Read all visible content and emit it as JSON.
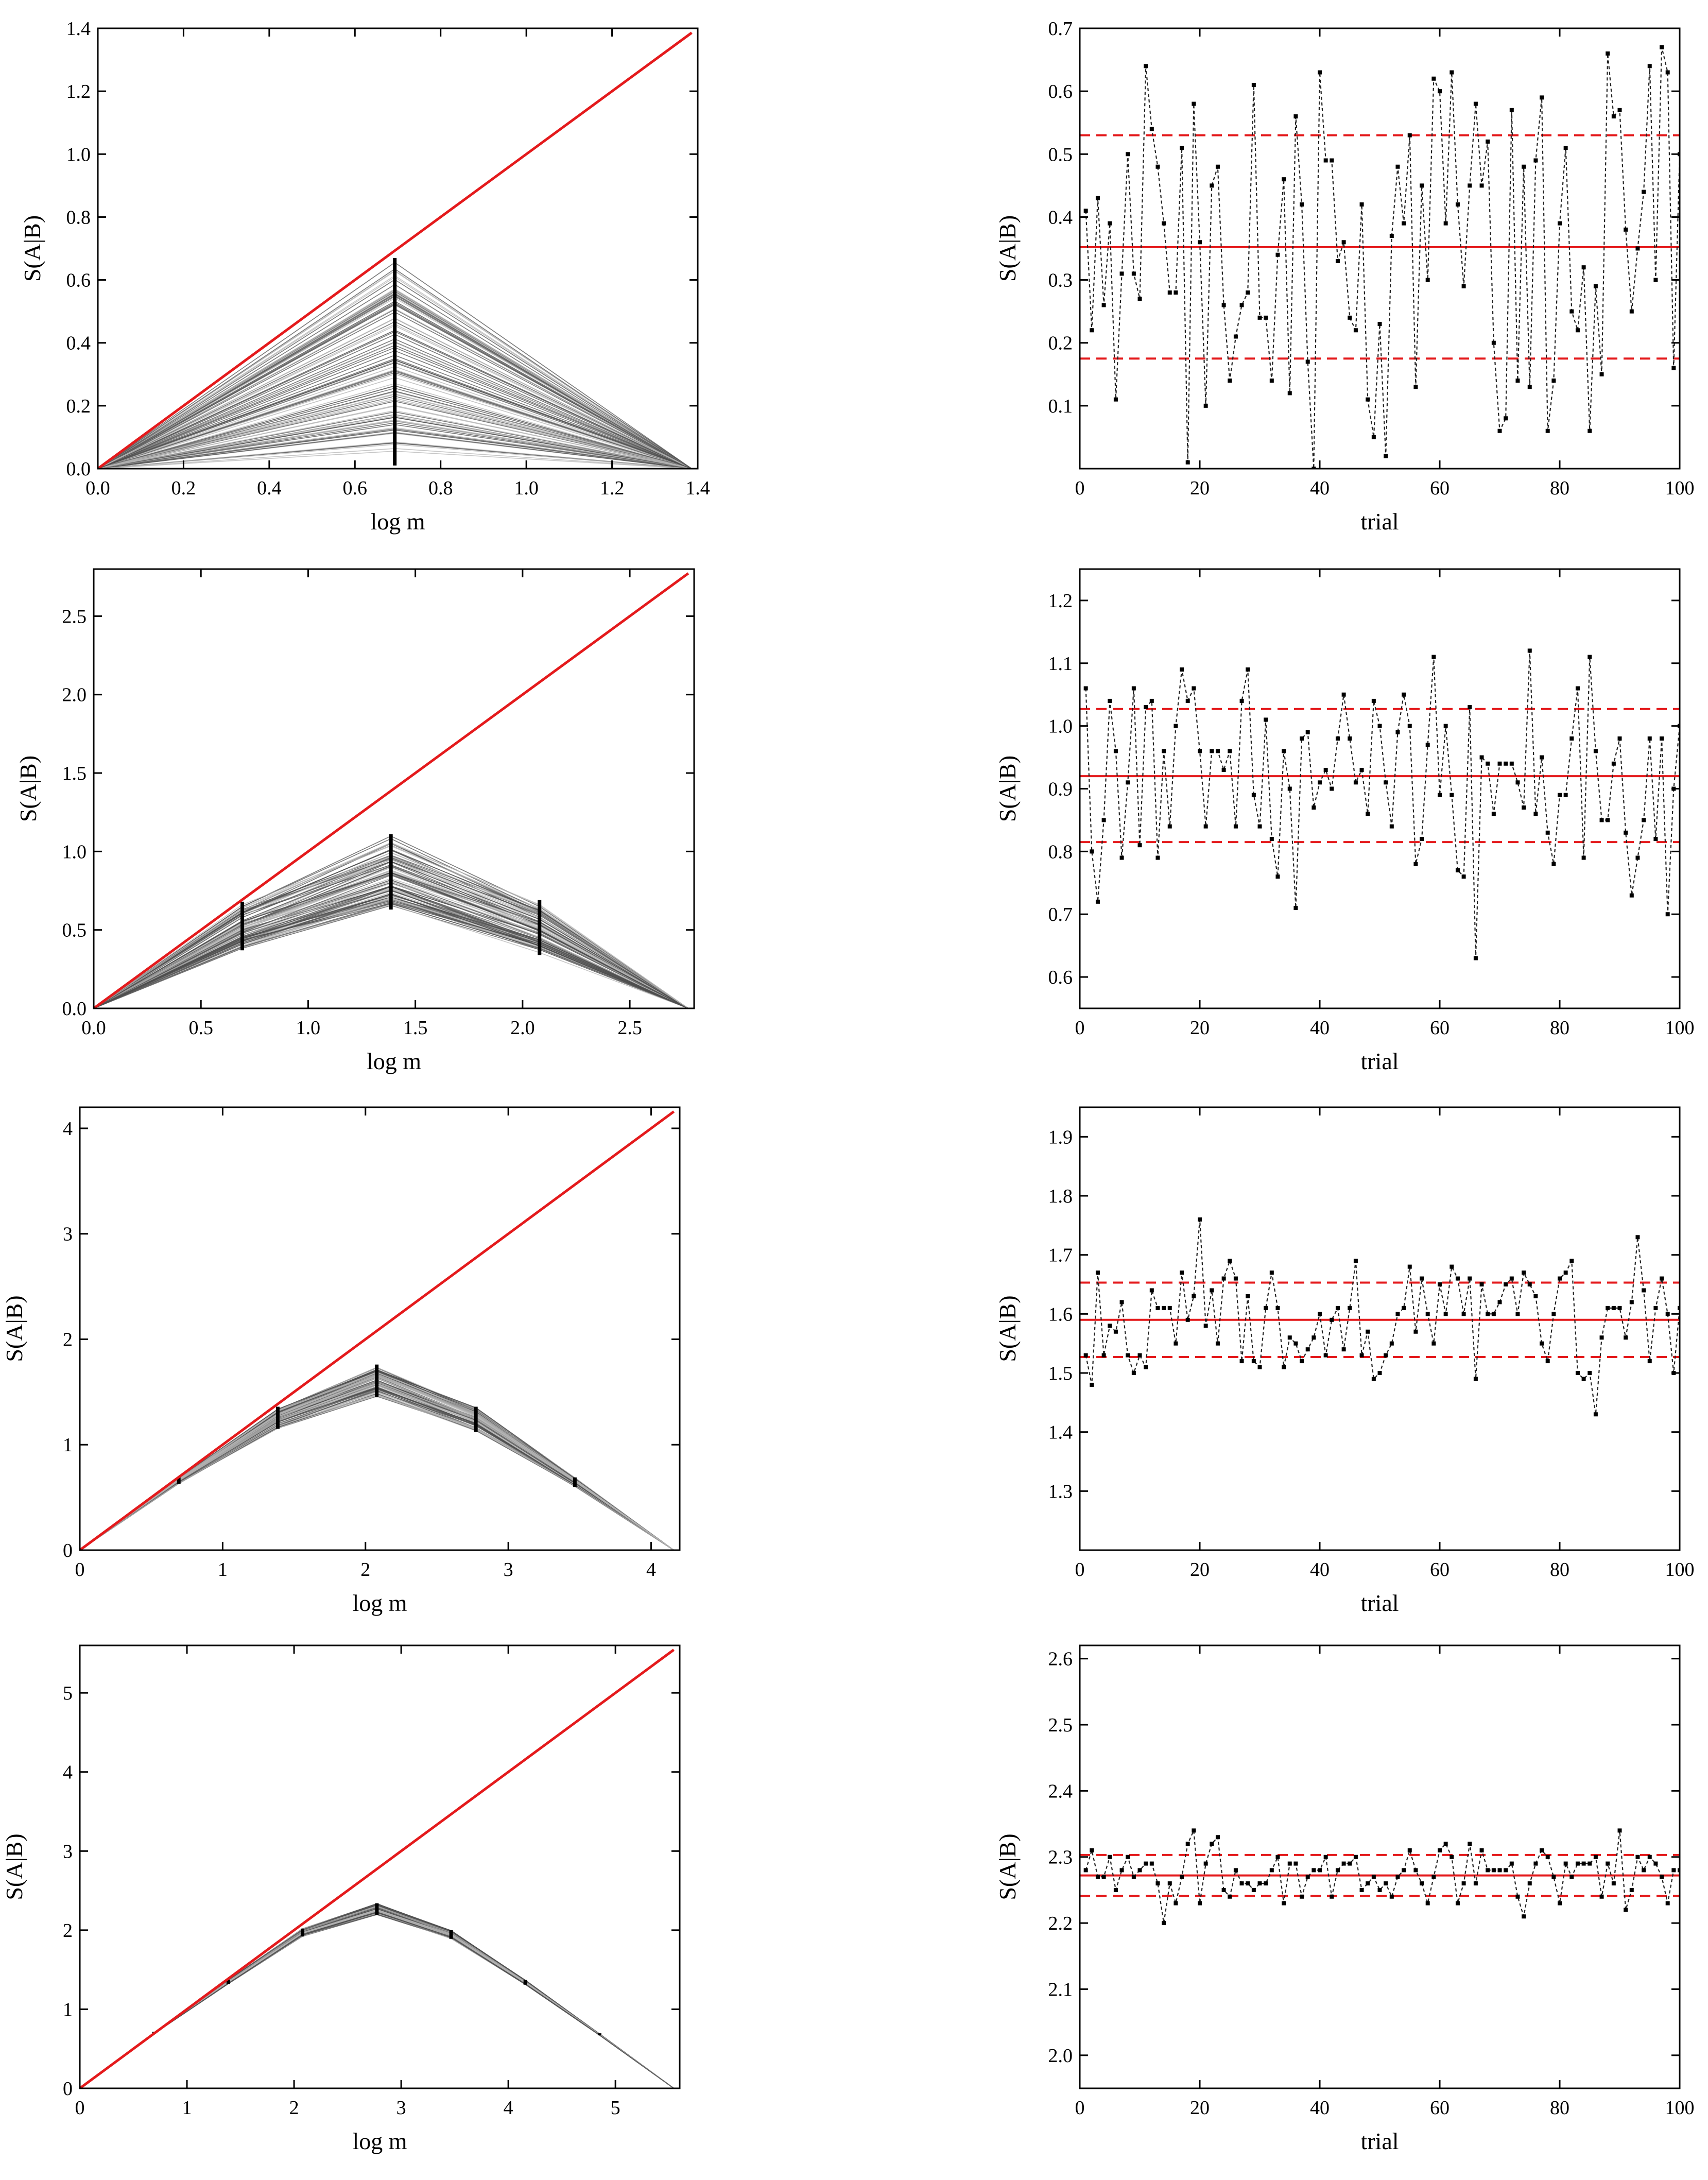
{
  "colors": {
    "reference_line": "#e41a1c",
    "mean_line": "#e41a1c",
    "band_line": "#e41a1c",
    "trial_series": "#222222",
    "profile_light": "#b3b3b3",
    "profile_dark": "#4d4d4d",
    "marker": "#000000"
  },
  "chart_data": [
    {
      "type": "line",
      "panel": "row-1-left",
      "xlabel": "log m",
      "ylabel": "S(A|B)",
      "xlim": [
        0,
        1.4
      ],
      "ylim": [
        0,
        1.4
      ],
      "xticks": [
        "0.0",
        "0.2",
        "0.4",
        "0.6",
        "0.8",
        "1.0",
        "1.2",
        "1.4"
      ],
      "yticks": [
        "0.0",
        "0.2",
        "0.4",
        "0.6",
        "0.8",
        "1.0",
        "1.2",
        "1.4"
      ],
      "reference_line": {
        "x": [
          0,
          1.386
        ],
        "y": [
          0,
          1.386
        ]
      },
      "profile_x": [
        0,
        0.693,
        1.386
      ],
      "profile_count": 100,
      "marked_x": [
        0.693
      ],
      "spread_at_marked_x": [
        {
          "x": 0.693,
          "min": 0.01,
          "max": 0.67
        }
      ],
      "grid": false
    },
    {
      "type": "line",
      "panel": "row-1-right",
      "xlabel": "trial",
      "ylabel": "S(A|B)",
      "xlim": [
        0,
        100
      ],
      "ylim": [
        0,
        0.7
      ],
      "xticks": [
        "0",
        "20",
        "40",
        "60",
        "80",
        "100"
      ],
      "yticks": [
        "0.1",
        "0.2",
        "0.3",
        "0.4",
        "0.5",
        "0.6",
        "0.7"
      ],
      "mean": 0.352,
      "band": [
        0.175,
        0.53
      ],
      "x": [
        1,
        2,
        3,
        4,
        5,
        6,
        7,
        8,
        9,
        10,
        11,
        12,
        13,
        14,
        15,
        16,
        17,
        18,
        19,
        20,
        21,
        22,
        23,
        24,
        25,
        26,
        27,
        28,
        29,
        30,
        31,
        32,
        33,
        34,
        35,
        36,
        37,
        38,
        39,
        40,
        41,
        42,
        43,
        44,
        45,
        46,
        47,
        48,
        49,
        50,
        51,
        52,
        53,
        54,
        55,
        56,
        57,
        58,
        59,
        60,
        61,
        62,
        63,
        64,
        65,
        66,
        67,
        68,
        69,
        70,
        71,
        72,
        73,
        74,
        75,
        76,
        77,
        78,
        79,
        80,
        81,
        82,
        83,
        84,
        85,
        86,
        87,
        88,
        89,
        90,
        91,
        92,
        93,
        94,
        95,
        96,
        97,
        98,
        99,
        100
      ],
      "y": [
        0.41,
        0.22,
        0.43,
        0.26,
        0.39,
        0.11,
        0.31,
        0.5,
        0.31,
        0.27,
        0.64,
        0.54,
        0.48,
        0.39,
        0.28,
        0.28,
        0.51,
        0.01,
        0.58,
        0.36,
        0.1,
        0.45,
        0.48,
        0.26,
        0.14,
        0.21,
        0.26,
        0.28,
        0.61,
        0.24,
        0.24,
        0.14,
        0.34,
        0.46,
        0.12,
        0.56,
        0.42,
        0.17,
        0.0,
        0.63,
        0.49,
        0.49,
        0.33,
        0.36,
        0.24,
        0.22,
        0.42,
        0.11,
        0.05,
        0.23,
        0.02,
        0.37,
        0.48,
        0.39,
        0.53,
        0.13,
        0.45,
        0.3,
        0.62,
        0.6,
        0.39,
        0.63,
        0.42,
        0.29,
        0.45,
        0.58,
        0.45,
        0.52,
        0.2,
        0.06,
        0.08,
        0.57,
        0.14,
        0.48,
        0.13,
        0.49,
        0.59,
        0.06,
        0.14,
        0.39,
        0.51,
        0.25,
        0.22,
        0.32,
        0.06,
        0.29,
        0.15,
        0.66,
        0.56,
        0.57,
        0.38,
        0.25,
        0.35,
        0.44,
        0.64,
        0.3,
        0.67,
        0.63,
        0.16,
        0.5
      ]
    },
    {
      "type": "line",
      "panel": "row-2-left",
      "xlabel": "log m",
      "ylabel": "S(A|B)",
      "xlim": [
        0,
        2.8
      ],
      "ylim": [
        0,
        2.8
      ],
      "xticks": [
        "0.0",
        "0.5",
        "1.0",
        "1.5",
        "2.0",
        "2.5"
      ],
      "yticks": [
        "0.0",
        "0.5",
        "1.0",
        "1.5",
        "2.0",
        "2.5"
      ],
      "reference_line": {
        "x": [
          0,
          2.773
        ],
        "y": [
          0,
          2.773
        ]
      },
      "profile_x": [
        0,
        0.693,
        1.386,
        2.079,
        2.773
      ],
      "profile_count": 100,
      "marked_x": [
        0.693,
        1.386,
        2.079
      ],
      "spread_at_marked_x": [
        {
          "x": 0.693,
          "min": 0.37,
          "max": 0.68
        },
        {
          "x": 1.386,
          "min": 0.63,
          "max": 1.11
        },
        {
          "x": 2.079,
          "min": 0.34,
          "max": 0.69
        }
      ],
      "grid": false
    },
    {
      "type": "line",
      "panel": "row-2-right",
      "xlabel": "trial",
      "ylabel": "S(A|B)",
      "xlim": [
        0,
        100
      ],
      "ylim": [
        0.55,
        1.25
      ],
      "xticks": [
        "0",
        "20",
        "40",
        "60",
        "80",
        "100"
      ],
      "yticks": [
        "0.6",
        "0.7",
        "0.8",
        "0.9",
        "1.0",
        "1.1",
        "1.2"
      ],
      "mean": 0.92,
      "band": [
        0.815,
        1.027
      ],
      "x": [
        1,
        2,
        3,
        4,
        5,
        6,
        7,
        8,
        9,
        10,
        11,
        12,
        13,
        14,
        15,
        16,
        17,
        18,
        19,
        20,
        21,
        22,
        23,
        24,
        25,
        26,
        27,
        28,
        29,
        30,
        31,
        32,
        33,
        34,
        35,
        36,
        37,
        38,
        39,
        40,
        41,
        42,
        43,
        44,
        45,
        46,
        47,
        48,
        49,
        50,
        51,
        52,
        53,
        54,
        55,
        56,
        57,
        58,
        59,
        60,
        61,
        62,
        63,
        64,
        65,
        66,
        67,
        68,
        69,
        70,
        71,
        72,
        73,
        74,
        75,
        76,
        77,
        78,
        79,
        80,
        81,
        82,
        83,
        84,
        85,
        86,
        87,
        88,
        89,
        90,
        91,
        92,
        93,
        94,
        95,
        96,
        97,
        98,
        99,
        100
      ],
      "y": [
        1.06,
        0.8,
        0.72,
        0.85,
        1.04,
        0.96,
        0.79,
        0.91,
        1.06,
        0.81,
        1.03,
        1.04,
        0.79,
        0.96,
        0.84,
        1.0,
        1.09,
        1.04,
        1.06,
        0.96,
        0.84,
        0.96,
        0.96,
        0.93,
        0.96,
        0.84,
        1.04,
        1.09,
        0.89,
        0.84,
        1.01,
        0.82,
        0.76,
        0.96,
        0.9,
        0.71,
        0.98,
        0.99,
        0.87,
        0.91,
        0.93,
        0.9,
        0.98,
        1.05,
        0.98,
        0.91,
        0.93,
        0.86,
        1.04,
        1.0,
        0.91,
        0.84,
        0.99,
        1.05,
        1.0,
        0.78,
        0.82,
        0.97,
        1.11,
        0.89,
        1.0,
        0.89,
        0.77,
        0.76,
        1.03,
        0.63,
        0.95,
        0.94,
        0.86,
        0.94,
        0.94,
        0.94,
        0.91,
        0.87,
        1.12,
        0.86,
        0.95,
        0.83,
        0.78,
        0.89,
        0.89,
        0.98,
        1.06,
        0.79,
        1.11,
        0.96,
        0.85,
        0.85,
        0.94,
        0.98,
        0.83,
        0.73,
        0.79,
        0.85,
        0.98,
        0.82,
        0.98,
        0.7,
        0.9,
        1.0
      ]
    },
    {
      "type": "line",
      "panel": "row-3-left",
      "xlabel": "log m",
      "ylabel": "S(A|B)",
      "xlim": [
        0,
        4.2
      ],
      "ylim": [
        0,
        4.2
      ],
      "xticks": [
        "0",
        "1",
        "2",
        "3",
        "4"
      ],
      "yticks": [
        "0",
        "1",
        "2",
        "3",
        "4"
      ],
      "reference_line": {
        "x": [
          0,
          4.159
        ],
        "y": [
          0,
          4.159
        ]
      },
      "profile_x": [
        0,
        0.693,
        1.386,
        2.079,
        2.773,
        3.466,
        4.159
      ],
      "profile_count": 100,
      "marked_x": [
        0.693,
        1.386,
        2.079,
        2.773,
        3.466
      ],
      "spread_at_marked_x": [
        {
          "x": 0.693,
          "min": 0.63,
          "max": 0.69
        },
        {
          "x": 1.386,
          "min": 1.15,
          "max": 1.36
        },
        {
          "x": 2.079,
          "min": 1.45,
          "max": 1.76
        },
        {
          "x": 2.773,
          "min": 1.12,
          "max": 1.36
        },
        {
          "x": 3.466,
          "min": 0.6,
          "max": 0.69
        }
      ],
      "grid": false
    },
    {
      "type": "line",
      "panel": "row-3-right",
      "xlabel": "trial",
      "ylabel": "S(A|B)",
      "xlim": [
        0,
        100
      ],
      "ylim": [
        1.2,
        1.95
      ],
      "xticks": [
        "0",
        "20",
        "40",
        "60",
        "80",
        "100"
      ],
      "yticks": [
        "1.3",
        "1.4",
        "1.5",
        "1.6",
        "1.7",
        "1.8",
        "1.9"
      ],
      "mean": 1.59,
      "band": [
        1.527,
        1.653
      ],
      "x": [
        1,
        2,
        3,
        4,
        5,
        6,
        7,
        8,
        9,
        10,
        11,
        12,
        13,
        14,
        15,
        16,
        17,
        18,
        19,
        20,
        21,
        22,
        23,
        24,
        25,
        26,
        27,
        28,
        29,
        30,
        31,
        32,
        33,
        34,
        35,
        36,
        37,
        38,
        39,
        40,
        41,
        42,
        43,
        44,
        45,
        46,
        47,
        48,
        49,
        50,
        51,
        52,
        53,
        54,
        55,
        56,
        57,
        58,
        59,
        60,
        61,
        62,
        63,
        64,
        65,
        66,
        67,
        68,
        69,
        70,
        71,
        72,
        73,
        74,
        75,
        76,
        77,
        78,
        79,
        80,
        81,
        82,
        83,
        84,
        85,
        86,
        87,
        88,
        89,
        90,
        91,
        92,
        93,
        94,
        95,
        96,
        97,
        98,
        99,
        100
      ],
      "y": [
        1.53,
        1.48,
        1.67,
        1.53,
        1.58,
        1.57,
        1.62,
        1.53,
        1.5,
        1.53,
        1.51,
        1.64,
        1.61,
        1.61,
        1.61,
        1.55,
        1.67,
        1.59,
        1.63,
        1.76,
        1.58,
        1.64,
        1.55,
        1.66,
        1.69,
        1.66,
        1.52,
        1.63,
        1.52,
        1.51,
        1.61,
        1.67,
        1.61,
        1.51,
        1.56,
        1.55,
        1.52,
        1.54,
        1.56,
        1.6,
        1.53,
        1.59,
        1.61,
        1.54,
        1.61,
        1.69,
        1.53,
        1.57,
        1.49,
        1.5,
        1.53,
        1.55,
        1.6,
        1.61,
        1.68,
        1.57,
        1.66,
        1.6,
        1.55,
        1.65,
        1.6,
        1.68,
        1.66,
        1.6,
        1.66,
        1.49,
        1.65,
        1.6,
        1.6,
        1.62,
        1.65,
        1.66,
        1.6,
        1.67,
        1.65,
        1.63,
        1.55,
        1.52,
        1.6,
        1.66,
        1.67,
        1.69,
        1.5,
        1.49,
        1.5,
        1.43,
        1.56,
        1.61,
        1.61,
        1.61,
        1.56,
        1.62,
        1.73,
        1.64,
        1.52,
        1.61,
        1.66,
        1.6,
        1.5,
        1.61
      ]
    },
    {
      "type": "line",
      "panel": "row-4-left",
      "xlabel": "log m",
      "ylabel": "S(A|B)",
      "xlim": [
        0,
        5.6
      ],
      "ylim": [
        0,
        5.6
      ],
      "xticks": [
        "0",
        "1",
        "2",
        "3",
        "4",
        "5"
      ],
      "yticks": [
        "0",
        "1",
        "2",
        "3",
        "4",
        "5"
      ],
      "reference_line": {
        "x": [
          0,
          5.545
        ],
        "y": [
          0,
          5.545
        ]
      },
      "profile_x": [
        0,
        0.693,
        1.386,
        2.079,
        2.773,
        3.466,
        4.159,
        4.852,
        5.545
      ],
      "profile_count": 100,
      "marked_x": [
        0.693,
        1.386,
        2.079,
        2.773,
        3.466,
        4.159,
        4.852
      ],
      "spread_at_marked_x": [
        {
          "x": 0.693,
          "min": 0.69,
          "max": 0.69
        },
        {
          "x": 1.386,
          "min": 1.32,
          "max": 1.37
        },
        {
          "x": 2.079,
          "min": 1.92,
          "max": 2.02
        },
        {
          "x": 2.773,
          "min": 2.19,
          "max": 2.34
        },
        {
          "x": 3.466,
          "min": 1.89,
          "max": 2.0
        },
        {
          "x": 4.159,
          "min": 1.31,
          "max": 1.37
        },
        {
          "x": 4.852,
          "min": 0.67,
          "max": 0.69
        }
      ],
      "grid": false
    },
    {
      "type": "line",
      "panel": "row-4-right",
      "xlabel": "trial",
      "ylabel": "S(A|B)",
      "xlim": [
        0,
        100
      ],
      "ylim": [
        1.95,
        2.62
      ],
      "xticks": [
        "0",
        "20",
        "40",
        "60",
        "80",
        "100"
      ],
      "yticks": [
        "2.0",
        "2.1",
        "2.2",
        "2.3",
        "2.4",
        "2.5",
        "2.6"
      ],
      "mean": 2.272,
      "band": [
        2.241,
        2.303
      ],
      "x": [
        1,
        2,
        3,
        4,
        5,
        6,
        7,
        8,
        9,
        10,
        11,
        12,
        13,
        14,
        15,
        16,
        17,
        18,
        19,
        20,
        21,
        22,
        23,
        24,
        25,
        26,
        27,
        28,
        29,
        30,
        31,
        32,
        33,
        34,
        35,
        36,
        37,
        38,
        39,
        40,
        41,
        42,
        43,
        44,
        45,
        46,
        47,
        48,
        49,
        50,
        51,
        52,
        53,
        54,
        55,
        56,
        57,
        58,
        59,
        60,
        61,
        62,
        63,
        64,
        65,
        66,
        67,
        68,
        69,
        70,
        71,
        72,
        73,
        74,
        75,
        76,
        77,
        78,
        79,
        80,
        81,
        82,
        83,
        84,
        85,
        86,
        87,
        88,
        89,
        90,
        91,
        92,
        93,
        94,
        95,
        96,
        97,
        98,
        99,
        100
      ],
      "y": [
        2.28,
        2.31,
        2.27,
        2.27,
        2.3,
        2.25,
        2.28,
        2.3,
        2.27,
        2.28,
        2.29,
        2.29,
        2.26,
        2.2,
        2.26,
        2.23,
        2.27,
        2.32,
        2.34,
        2.23,
        2.29,
        2.32,
        2.33,
        2.25,
        2.24,
        2.28,
        2.26,
        2.26,
        2.25,
        2.26,
        2.26,
        2.28,
        2.3,
        2.23,
        2.29,
        2.29,
        2.24,
        2.27,
        2.28,
        2.28,
        2.3,
        2.24,
        2.28,
        2.29,
        2.29,
        2.3,
        2.25,
        2.26,
        2.27,
        2.25,
        2.26,
        2.24,
        2.27,
        2.28,
        2.31,
        2.28,
        2.26,
        2.23,
        2.27,
        2.31,
        2.32,
        2.3,
        2.23,
        2.26,
        2.32,
        2.26,
        2.31,
        2.28,
        2.28,
        2.28,
        2.28,
        2.29,
        2.24,
        2.21,
        2.26,
        2.29,
        2.31,
        2.3,
        2.27,
        2.23,
        2.29,
        2.27,
        2.29,
        2.29,
        2.29,
        2.3,
        2.24,
        2.29,
        2.26,
        2.34,
        2.22,
        2.25,
        2.3,
        2.28,
        2.3,
        2.29,
        2.27,
        2.23,
        2.28,
        2.28
      ]
    }
  ]
}
